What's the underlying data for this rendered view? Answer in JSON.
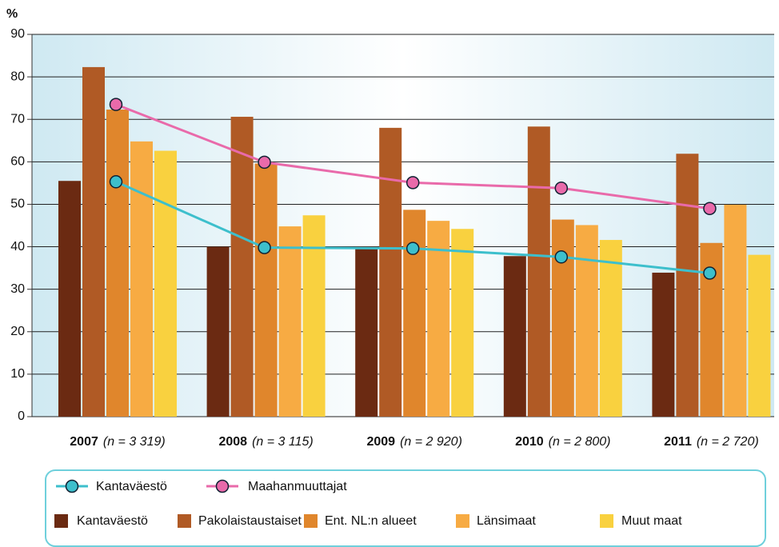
{
  "chart_data": {
    "type": "bar",
    "y_label": "%",
    "categories": [
      "2007",
      "2008",
      "2009",
      "2010",
      "2011"
    ],
    "category_notes": [
      "(n = 3 319)",
      "(n = 3 115)",
      "(n = 2 920)",
      "(n = 2 800)",
      "(n = 2 720)"
    ],
    "ylim": [
      0,
      90
    ],
    "yticks": [
      0,
      10,
      20,
      30,
      40,
      50,
      60,
      70,
      80,
      90
    ],
    "grid": true,
    "series": [
      {
        "name": "Kantaväestö",
        "color": "#6b2a12",
        "values": [
          55.5,
          40,
          40,
          37.8,
          33.9
        ]
      },
      {
        "name": "Pakolaistaustaiset",
        "color": "#b05a25",
        "values": [
          82.3,
          70.6,
          68,
          68.3,
          61.9
        ]
      },
      {
        "name": "Ent. NL:n alueet",
        "color": "#e0862c",
        "values": [
          72.3,
          59.6,
          48.7,
          46.4,
          40.9
        ]
      },
      {
        "name": "Länsimaat",
        "color": "#f7ab43",
        "values": [
          64.8,
          44.8,
          46.1,
          45.1,
          49.9
        ]
      },
      {
        "name": "Muut maat",
        "color": "#f9d13f",
        "values": [
          62.6,
          47.4,
          44.2,
          41.6,
          38.1
        ]
      }
    ],
    "line_series": [
      {
        "name": "Kantaväestö",
        "color": "#3dbfcc",
        "values": [
          55.3,
          39.8,
          39.6,
          37.6,
          33.8
        ]
      },
      {
        "name": "Maahanmuuttajat",
        "color": "#e96aaa",
        "values": [
          73.5,
          59.9,
          55.1,
          53.8,
          49.0
        ]
      }
    ]
  }
}
